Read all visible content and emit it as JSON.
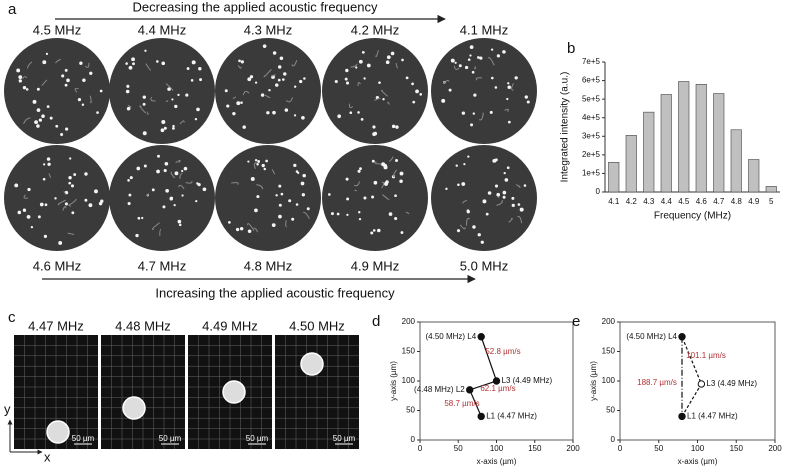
{
  "panel_a": {
    "label": "a",
    "top_title": "Decreasing the applied acoustic frequency",
    "top_labels": [
      "4.5 MHz",
      "4.4 MHz",
      "4.3 MHz",
      "4.2 MHz",
      "4.1 MHz"
    ],
    "bottom_labels": [
      "4.6 MHz",
      "4.7 MHz",
      "4.8 MHz",
      "4.9 MHz",
      "5.0 MHz"
    ],
    "bottom_title": "Increasing the applied acoustic frequency"
  },
  "panel_c": {
    "label": "c",
    "frame_labels": [
      "4.47 MHz",
      "4.48 MHz",
      "4.49 MHz",
      "4.50 MHz"
    ],
    "scale_bar": "50 µm",
    "y_axis": "y",
    "x_axis": "x"
  },
  "chart_data": [
    {
      "type": "bar",
      "panel": "b",
      "x_label": "Frequency (MHz)",
      "y_label": "Integrated intensity (a.u.)",
      "categories": [
        "4.1",
        "4.2",
        "4.3",
        "4.4",
        "4.5",
        "4.6",
        "4.7",
        "4.8",
        "4.9",
        "5"
      ],
      "values": [
        160000,
        305000,
        430000,
        525000,
        595000,
        580000,
        530000,
        335000,
        175000,
        30000
      ],
      "color": "#c0c0c0",
      "ylim": [
        0,
        700000
      ],
      "yticks": [
        0,
        {
          "value": 100000,
          "label": "1e+5"
        },
        {
          "value": 200000,
          "label": "2e+5"
        },
        {
          "value": 300000,
          "label": "3e+5"
        },
        {
          "value": 400000,
          "label": "4e+5"
        },
        {
          "value": 500000,
          "label": "5e+5"
        },
        {
          "value": 600000,
          "label": "6e+5"
        },
        {
          "value": 700000,
          "label": "7e+5"
        }
      ]
    },
    {
      "type": "scatter",
      "panel": "d",
      "x_label": "x-axis (µm)",
      "y_label": "y-axis (µm)",
      "x": [
        80,
        65,
        100,
        80
      ],
      "values": [
        40,
        85,
        100,
        175
      ],
      "point_labels": [
        "L1 (4.47 MHz)",
        "(4.48 MHz) L2",
        "L3 (4.49 MHz)",
        "(4.50 MHz) L4"
      ],
      "annotations": [
        "58.7 µm/s",
        "62.1 µm/s",
        "52.8 µm/s"
      ],
      "color": "#111111",
      "xlim": [
        0,
        200
      ],
      "xticks": [
        0,
        50,
        100,
        150,
        200
      ],
      "ylim": [
        0,
        200
      ],
      "yticks": [
        0,
        50,
        100,
        150,
        200
      ]
    },
    {
      "type": "scatter",
      "panel": "e",
      "x_label": "x-axis (µm)",
      "y_label": "y-axis (µm)",
      "x": [
        80,
        105,
        80
      ],
      "values": [
        40,
        95,
        175
      ],
      "point_labels": [
        "L1 (4.47 MHz)",
        "L3 (4.49 MHz)",
        "(4.50 MHz) L4"
      ],
      "annotations": [
        "188.7 µm/s",
        "101.1 µm/s"
      ],
      "color": "#111111",
      "dashed": true,
      "closed": true,
      "xlim": [
        0,
        200
      ],
      "xticks": [
        0,
        50,
        100,
        150,
        200
      ],
      "ylim": [
        0,
        200
      ],
      "yticks": [
        0,
        50,
        100,
        150,
        200
      ]
    }
  ]
}
